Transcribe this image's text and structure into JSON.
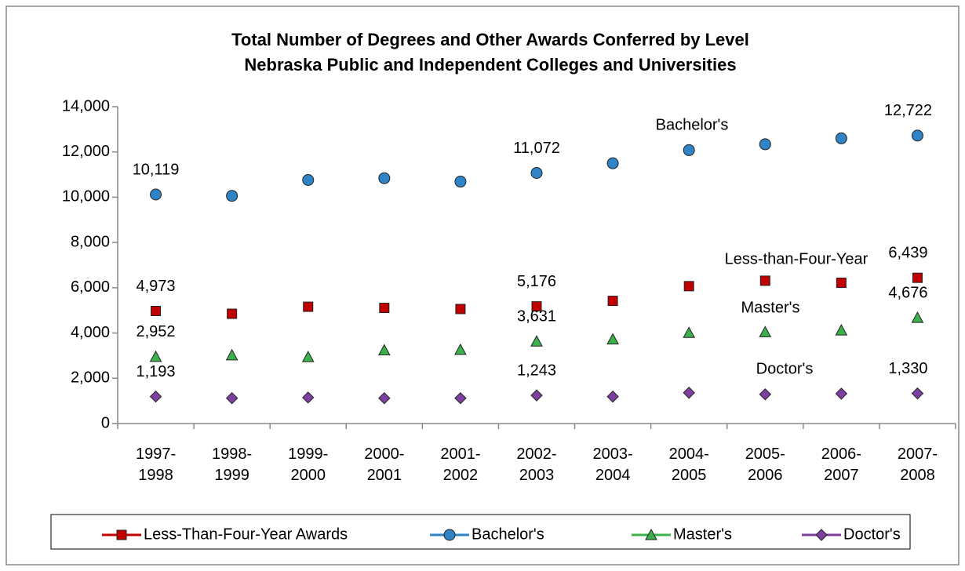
{
  "chart_data": {
    "type": "line",
    "title": [
      "Total Number of Degrees and Other Awards Conferred by Level",
      "Nebraska Public and Independent Colleges and Universities"
    ],
    "categories": [
      "1997-1998",
      "1998-1999",
      "1999-2000",
      "2000-2001",
      "2001-2002",
      "2002-2003",
      "2003-2004",
      "2004-2005",
      "2005-2006",
      "2006-2007",
      "2007-2008"
    ],
    "series": [
      {
        "name": "Less-Than-Four-Year Awards",
        "color": "#c00000",
        "marker": "square",
        "values": [
          4973,
          4850,
          5160,
          5110,
          5060,
          5176,
          5420,
          6070,
          6310,
          6220,
          6439
        ],
        "value_labels": [
          "4,973",
          null,
          null,
          null,
          null,
          "5,176",
          null,
          null,
          null,
          null,
          "6,439"
        ]
      },
      {
        "name": "Bachelor's",
        "color": "#2e84c6",
        "marker": "circle",
        "values": [
          10119,
          10060,
          10760,
          10840,
          10690,
          11072,
          11500,
          12080,
          12340,
          12600,
          12722
        ],
        "value_labels": [
          "10,119",
          null,
          null,
          null,
          null,
          "11,072",
          null,
          null,
          null,
          null,
          "12,722"
        ]
      },
      {
        "name": "Master's",
        "color": "#3cb04a",
        "marker": "triangle",
        "values": [
          2952,
          3020,
          2940,
          3240,
          3260,
          3631,
          3720,
          4010,
          4040,
          4120,
          4676
        ],
        "value_labels": [
          "2,952",
          null,
          null,
          null,
          null,
          "3,631",
          null,
          null,
          null,
          null,
          "4,676"
        ]
      },
      {
        "name": "Doctor's",
        "color": "#7f3fa0",
        "marker": "diamond",
        "values": [
          1193,
          1120,
          1150,
          1120,
          1120,
          1243,
          1190,
          1360,
          1290,
          1320,
          1330
        ],
        "value_labels": [
          "1,193",
          null,
          null,
          null,
          null,
          "1,243",
          null,
          null,
          null,
          null,
          "1,330"
        ]
      }
    ],
    "annotations": [
      "Less-than-Four-Year",
      "Bachelor's",
      "Master's",
      "Doctor's"
    ],
    "ylim": [
      0,
      14000
    ],
    "yticks": [
      0,
      {
        "value": 2000,
        "label": "2,000"
      },
      {
        "value": 4000,
        "label": "4,000"
      },
      {
        "value": 6000,
        "label": "6,000"
      },
      {
        "value": 8000,
        "label": "8,000"
      },
      {
        "value": 10000,
        "label": "10,000"
      },
      {
        "value": 12000,
        "label": "12,000"
      },
      {
        "value": 14000,
        "label": "14,000"
      }
    ],
    "legend": "bottom"
  }
}
